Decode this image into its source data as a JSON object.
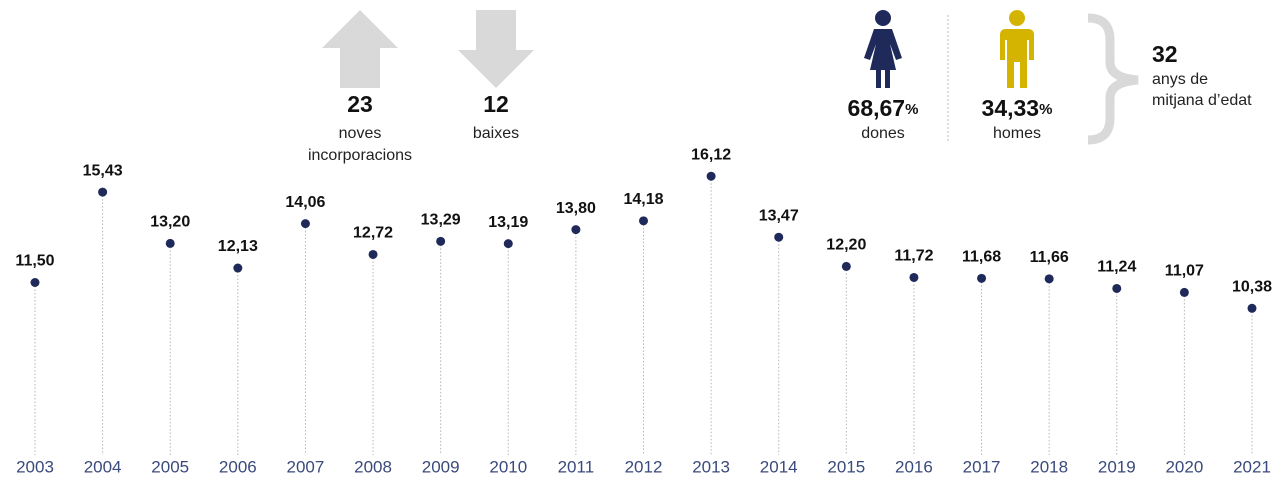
{
  "chart_data": {
    "type": "lollipop",
    "categories": [
      "2003",
      "2004",
      "2005",
      "2006",
      "2007",
      "2008",
      "2009",
      "2010",
      "2011",
      "2012",
      "2013",
      "2014",
      "2015",
      "2016",
      "2017",
      "2018",
      "2019",
      "2020",
      "2021"
    ],
    "values": [
      11.5,
      15.43,
      13.2,
      12.13,
      14.06,
      12.72,
      13.29,
      13.19,
      13.8,
      14.18,
      16.12,
      13.47,
      12.2,
      11.72,
      11.68,
      11.66,
      11.24,
      11.07,
      10.38
    ],
    "value_labels": [
      "11,50",
      "15,43",
      "13,20",
      "12,13",
      "14,06",
      "12,72",
      "13,29",
      "13,19",
      "13,80",
      "14,18",
      "16,12",
      "13,47",
      "12,20",
      "11,72",
      "11,68",
      "11,66",
      "11,24",
      "11,07",
      "10,38"
    ],
    "color": "#1f2a5a",
    "ylim": [
      4,
      16.5
    ]
  },
  "stats": {
    "incorporations": {
      "value": "23",
      "lines": [
        "noves",
        "incorporacions"
      ]
    },
    "departures": {
      "value": "12",
      "lines": [
        "baixes"
      ]
    },
    "women": {
      "value": "68,67",
      "unit": "%",
      "label": "dones"
    },
    "men": {
      "value": "34,33",
      "unit": "%",
      "label": "homes"
    },
    "age": {
      "value": "32",
      "lines": [
        "anys de",
        "mitjana d’edat"
      ]
    }
  }
}
